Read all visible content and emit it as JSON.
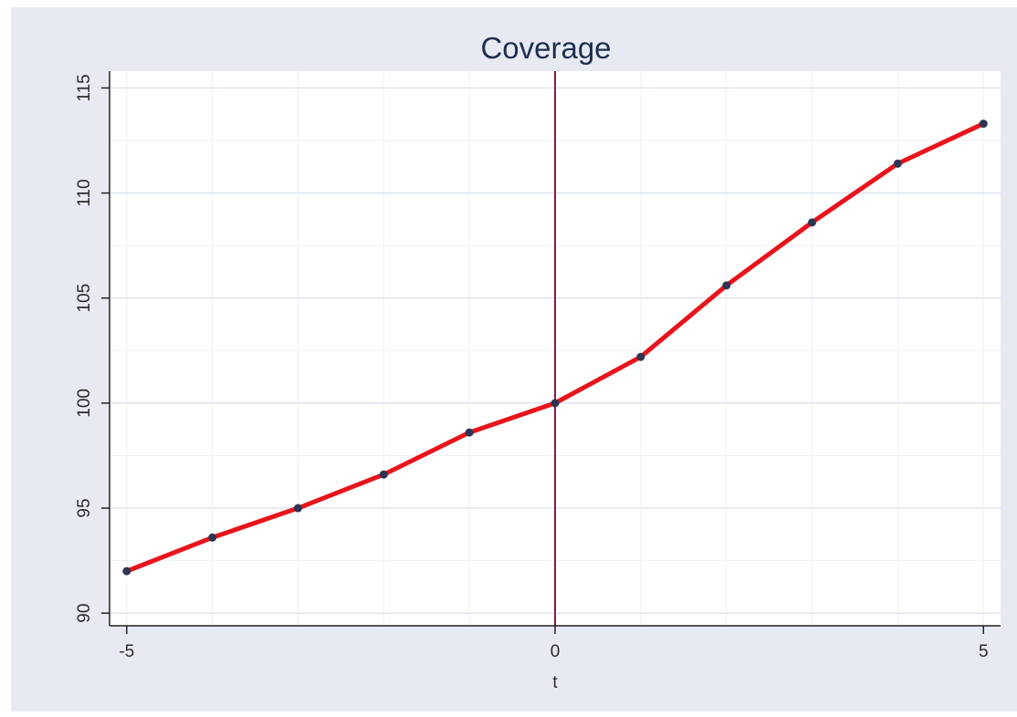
{
  "chart_data": {
    "type": "line",
    "title": "Coverage",
    "xlabel": "t",
    "ylabel": "",
    "xlim": [
      -5.2,
      5.2
    ],
    "ylim": [
      89.4,
      115.8
    ],
    "x_ticks": [
      -5,
      0,
      5
    ],
    "x_tick_labels": [
      "-5",
      "0",
      "5"
    ],
    "y_ticks": [
      90,
      95,
      100,
      105,
      110,
      115
    ],
    "y_tick_labels": [
      "90",
      "95",
      "100",
      "105",
      "110",
      "115"
    ],
    "grid": true,
    "reference_line_x": 0,
    "series": [
      {
        "x": [
          -5,
          -4,
          -3,
          -2,
          -1,
          0,
          1,
          2,
          3,
          4,
          5
        ],
        "values": [
          92.0,
          93.6,
          95.0,
          96.6,
          98.6,
          100.0,
          102.2,
          105.6,
          108.6,
          111.4,
          113.3
        ]
      }
    ],
    "colors": {
      "line": "#e8141c",
      "marker": "#2e3550",
      "reference_line": "#8b1a4a",
      "grid": "#dfe3ee",
      "frame": "#e7eaf3",
      "plot_bg": "#ffffff",
      "axis": "#222222",
      "title": "#1f2f4f"
    }
  }
}
